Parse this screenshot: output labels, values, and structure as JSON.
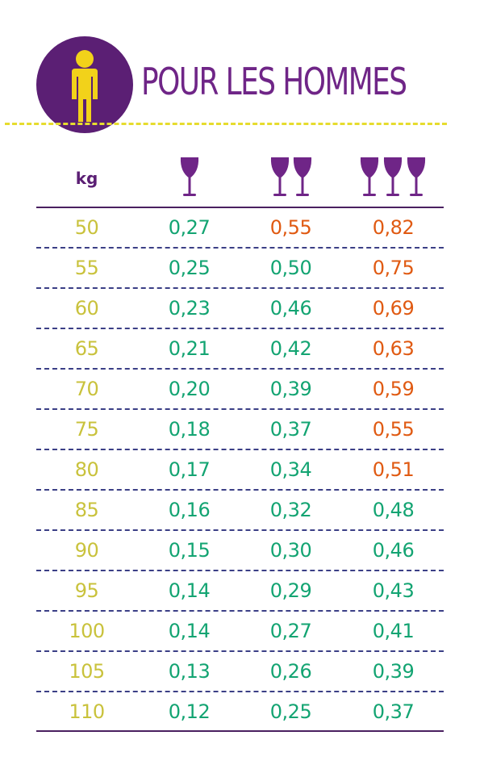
{
  "header": {
    "title": "POUR LES HOMMES",
    "icon": "man-figure-icon"
  },
  "colors": {
    "purple": "#5b1f74",
    "title": "#6f2587",
    "yellow": "#f2d21a",
    "weight_text": "#c9c23c",
    "green": "#13a472",
    "orange": "#e05a12",
    "dashed_rule": "#3b3f86"
  },
  "table": {
    "weight_header": "kg",
    "glass_headers": [
      "wine-glass-icon x1",
      "wine-glass-icon x2",
      "wine-glass-icon x3"
    ],
    "rows": [
      {
        "kg": "50",
        "one": "0,27",
        "two": "0,55",
        "three": "0,82",
        "c1": "green",
        "c2": "orange",
        "c3": "orange"
      },
      {
        "kg": "55",
        "one": "0,25",
        "two": "0,50",
        "three": "0,75",
        "c1": "green",
        "c2": "green",
        "c3": "orange"
      },
      {
        "kg": "60",
        "one": "0,23",
        "two": "0,46",
        "three": "0,69",
        "c1": "green",
        "c2": "green",
        "c3": "orange"
      },
      {
        "kg": "65",
        "one": "0,21",
        "two": "0,42",
        "three": "0,63",
        "c1": "green",
        "c2": "green",
        "c3": "orange"
      },
      {
        "kg": "70",
        "one": "0,20",
        "two": "0,39",
        "three": "0,59",
        "c1": "green",
        "c2": "green",
        "c3": "orange"
      },
      {
        "kg": "75",
        "one": "0,18",
        "two": "0,37",
        "three": "0,55",
        "c1": "green",
        "c2": "green",
        "c3": "orange"
      },
      {
        "kg": "80",
        "one": "0,17",
        "two": "0,34",
        "three": "0,51",
        "c1": "green",
        "c2": "green",
        "c3": "orange"
      },
      {
        "kg": "85",
        "one": "0,16",
        "two": "0,32",
        "three": "0,48",
        "c1": "green",
        "c2": "green",
        "c3": "green"
      },
      {
        "kg": "90",
        "one": "0,15",
        "two": "0,30",
        "three": "0,46",
        "c1": "green",
        "c2": "green",
        "c3": "green"
      },
      {
        "kg": "95",
        "one": "0,14",
        "two": "0,29",
        "three": "0,43",
        "c1": "green",
        "c2": "green",
        "c3": "green"
      },
      {
        "kg": "100",
        "one": "0,14",
        "two": "0,27",
        "three": "0,41",
        "c1": "green",
        "c2": "green",
        "c3": "green"
      },
      {
        "kg": "105",
        "one": "0,13",
        "two": "0,26",
        "three": "0,39",
        "c1": "green",
        "c2": "green",
        "c3": "green"
      },
      {
        "kg": "110",
        "one": "0,12",
        "two": "0,25",
        "three": "0,37",
        "c1": "green",
        "c2": "green",
        "c3": "green"
      }
    ]
  }
}
